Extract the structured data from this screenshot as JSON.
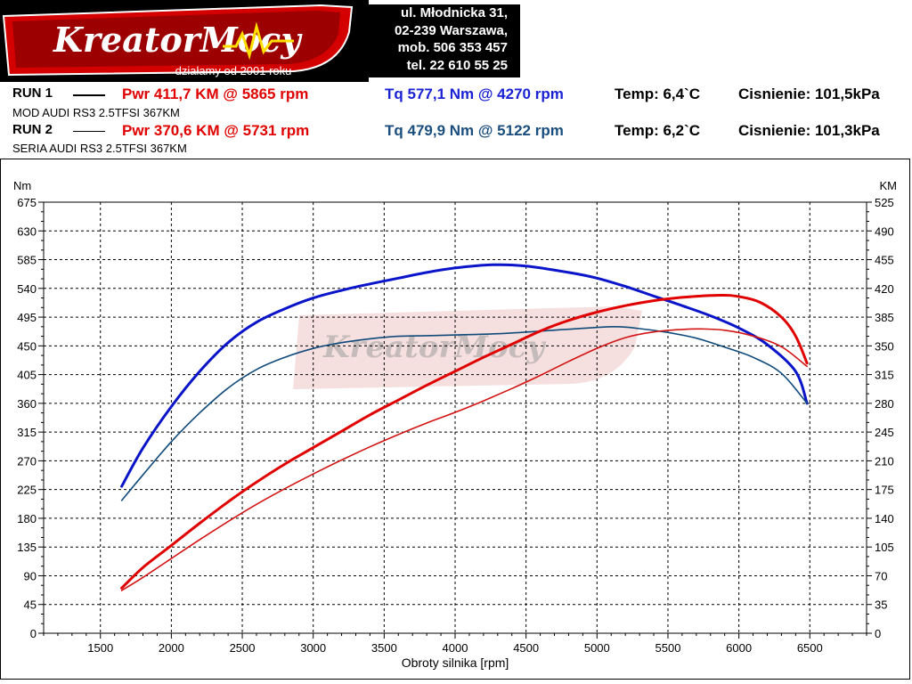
{
  "header": {
    "logo_text": "KreatorMocy",
    "logo_tagline": "działamy od 2001 roku",
    "address_lines": [
      "ul. Młodnicka 31,",
      "02-239  Warszawa,",
      "mob.  506 353 457",
      "tel.  22 610 55 25"
    ]
  },
  "runs": [
    {
      "label": "RUN 1",
      "power": "Pwr  411,7 KM @ 5865 rpm",
      "torque": "Tq 577,1 Nm @ 4270 rpm",
      "temp": "Temp: 6,4`C",
      "pressure": "Cisnienie: 101,5kPa",
      "car": "MOD AUDI RS3 2.5TFSI 367KM",
      "torque_color": "#0a14c8",
      "power_color": "#e00000",
      "line_width": "thick"
    },
    {
      "label": "RUN 2",
      "power": "Pwr  370,6 KM @ 5731 rpm",
      "torque": "Tq 479,9 Nm @ 5122 rpm",
      "temp": "Temp: 6,2`C",
      "pressure": "Cisnienie: 101,3kPa",
      "car": "SERIA AUDI RS3 2.5TFSI 367KM",
      "torque_color": "#104a7a",
      "power_color": "#d21414",
      "line_width": "thin"
    }
  ],
  "chart_data": {
    "type": "line",
    "title": "",
    "xlabel": "Obroty silnika [rpm]",
    "ylabel_left": "Nm",
    "ylabel_right": "KM",
    "xlim": [
      1100,
      6900
    ],
    "ylim_left": [
      0,
      675
    ],
    "ylim_right": [
      0,
      525
    ],
    "x_ticks": [
      1500,
      2000,
      2500,
      3000,
      3500,
      4000,
      4500,
      5000,
      5500,
      6000,
      6500
    ],
    "y_ticks_left": [
      0,
      45,
      90,
      135,
      180,
      225,
      270,
      315,
      360,
      405,
      450,
      495,
      540,
      585,
      630,
      675
    ],
    "y_ticks_right": [
      0,
      35,
      70,
      105,
      140,
      175,
      210,
      245,
      280,
      315,
      350,
      385,
      420,
      455,
      490,
      525
    ],
    "grid": true,
    "series": [
      {
        "name": "Tq RUN 1",
        "axis": "left",
        "color": "#0a14c8",
        "width": 3,
        "points": [
          [
            1650,
            230
          ],
          [
            1800,
            290
          ],
          [
            2000,
            355
          ],
          [
            2200,
            410
          ],
          [
            2400,
            455
          ],
          [
            2600,
            487
          ],
          [
            2800,
            508
          ],
          [
            3000,
            525
          ],
          [
            3200,
            537
          ],
          [
            3400,
            547
          ],
          [
            3600,
            556
          ],
          [
            3800,
            565
          ],
          [
            4000,
            572
          ],
          [
            4270,
            577
          ],
          [
            4500,
            575
          ],
          [
            4800,
            565
          ],
          [
            5000,
            556
          ],
          [
            5200,
            543
          ],
          [
            5400,
            528
          ],
          [
            5600,
            513
          ],
          [
            5800,
            497
          ],
          [
            6000,
            478
          ],
          [
            6200,
            452
          ],
          [
            6400,
            410
          ],
          [
            6480,
            360
          ]
        ]
      },
      {
        "name": "Tq RUN 2",
        "axis": "left",
        "color": "#104a7a",
        "width": 1.6,
        "points": [
          [
            1650,
            208
          ],
          [
            1800,
            248
          ],
          [
            2000,
            300
          ],
          [
            2200,
            345
          ],
          [
            2400,
            384
          ],
          [
            2600,
            413
          ],
          [
            2800,
            432
          ],
          [
            3000,
            446
          ],
          [
            3200,
            455
          ],
          [
            3400,
            461
          ],
          [
            3600,
            465
          ],
          [
            3800,
            466
          ],
          [
            4000,
            467
          ],
          [
            4300,
            469
          ],
          [
            4600,
            473
          ],
          [
            4800,
            476
          ],
          [
            5122,
            480
          ],
          [
            5300,
            477
          ],
          [
            5500,
            471
          ],
          [
            5700,
            462
          ],
          [
            5900,
            448
          ],
          [
            6100,
            432
          ],
          [
            6300,
            407
          ],
          [
            6480,
            360
          ]
        ]
      },
      {
        "name": "Pwr RUN 1",
        "axis": "right",
        "color": "#e00000",
        "width": 3,
        "points": [
          [
            1650,
            55
          ],
          [
            1800,
            80
          ],
          [
            2000,
            107
          ],
          [
            2200,
            134
          ],
          [
            2400,
            160
          ],
          [
            2600,
            184
          ],
          [
            2800,
            206
          ],
          [
            3000,
            226
          ],
          [
            3200,
            246
          ],
          [
            3400,
            266
          ],
          [
            3600,
            284
          ],
          [
            3800,
            302
          ],
          [
            4000,
            319
          ],
          [
            4200,
            336
          ],
          [
            4400,
            352
          ],
          [
            4600,
            368
          ],
          [
            4800,
            381
          ],
          [
            5000,
            391
          ],
          [
            5200,
            399
          ],
          [
            5400,
            405
          ],
          [
            5600,
            409
          ],
          [
            5865,
            411.7
          ],
          [
            6000,
            410
          ],
          [
            6150,
            403
          ],
          [
            6300,
            385
          ],
          [
            6400,
            362
          ],
          [
            6480,
            329
          ]
        ]
      },
      {
        "name": "Pwr RUN 2",
        "axis": "right",
        "color": "#d21414",
        "width": 1.6,
        "points": [
          [
            1650,
            52
          ],
          [
            1800,
            68
          ],
          [
            2000,
            91
          ],
          [
            2200,
            114
          ],
          [
            2400,
            136
          ],
          [
            2600,
            157
          ],
          [
            2800,
            176
          ],
          [
            3000,
            194
          ],
          [
            3200,
            211
          ],
          [
            3400,
            227
          ],
          [
            3600,
            242
          ],
          [
            3800,
            256
          ],
          [
            4000,
            269
          ],
          [
            4200,
            283
          ],
          [
            4400,
            298
          ],
          [
            4600,
            314
          ],
          [
            4800,
            331
          ],
          [
            5000,
            347
          ],
          [
            5200,
            360
          ],
          [
            5400,
            367
          ],
          [
            5600,
            370
          ],
          [
            5731,
            370.6
          ],
          [
            5900,
            369
          ],
          [
            6100,
            362
          ],
          [
            6300,
            349
          ],
          [
            6480,
            325
          ]
        ]
      }
    ]
  }
}
